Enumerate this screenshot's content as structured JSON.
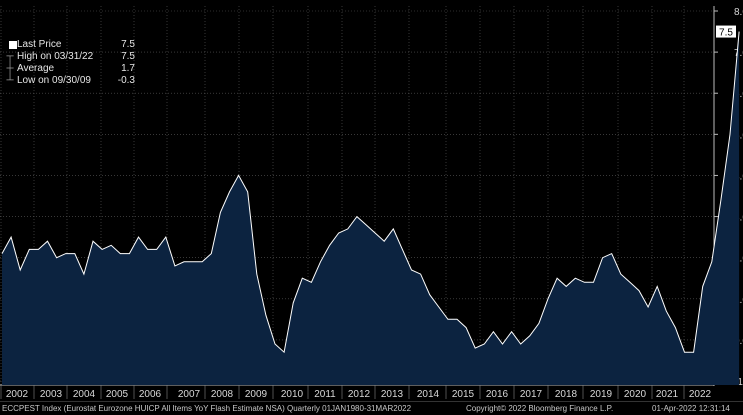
{
  "legend": {
    "last": {
      "label": "Last Price",
      "value": "7.5"
    },
    "high": {
      "label": "High on 03/31/22",
      "value": "7.5"
    },
    "average": {
      "label": "Average",
      "value": "1.7"
    },
    "low": {
      "label": "Low on 09/30/09",
      "value": "-0.3"
    }
  },
  "last_value_label": "7.5",
  "footer": {
    "index_desc": "ECCPEST Index (Eurostat Eurozone HUICP All Items YoY Flash Estimate NSA)  Quarterly 01JAN1980-31MAR2022",
    "copyright": "Copyright© 2022 Bloomberg Finance L.P.",
    "timestamp": "01-Apr-2022 12:31:14"
  },
  "colors": {
    "background": "#000000",
    "area_fill": "#0c2340",
    "line": "#ffffff",
    "grid": "#5a5a5a",
    "axis_text": "#d8d8d8"
  },
  "chart_data": {
    "type": "area",
    "ylim": [
      -1.0,
      8.0
    ],
    "y_ticks": [
      "8.0",
      "7.0",
      "6.0",
      "5.0",
      "4.0",
      "3.0",
      "2.0",
      "1.0",
      "0.0",
      "-1.0"
    ],
    "x_tick_labels": [
      "2002",
      "2003",
      "2004",
      "2005",
      "2006",
      "2007",
      "2008",
      "2009",
      "2010",
      "2011",
      "2012",
      "2013",
      "2014",
      "2015",
      "2016",
      "2017",
      "2018",
      "2019",
      "2020",
      "2021",
      "2022"
    ],
    "grid": true,
    "series": [
      {
        "start": "2001Q4",
        "frequency": "quarterly",
        "values": [
          2.1,
          2.5,
          1.7,
          2.2,
          2.2,
          2.4,
          2.0,
          2.1,
          2.1,
          1.6,
          2.4,
          2.2,
          2.3,
          2.1,
          2.1,
          2.5,
          2.2,
          2.2,
          2.5,
          1.8,
          1.9,
          1.9,
          1.9,
          2.1,
          3.1,
          3.6,
          4.0,
          3.6,
          1.6,
          0.6,
          -0.1,
          -0.3,
          0.9,
          1.5,
          1.4,
          1.9,
          2.3,
          2.6,
          2.7,
          3.0,
          2.8,
          2.6,
          2.4,
          2.7,
          2.2,
          1.7,
          1.6,
          1.1,
          0.8,
          0.5,
          0.5,
          0.3,
          -0.2,
          -0.1,
          0.2,
          -0.1,
          0.2,
          -0.1,
          0.1,
          0.4,
          1.0,
          1.5,
          1.3,
          1.5,
          1.4,
          1.4,
          2.0,
          2.1,
          1.6,
          1.4,
          1.2,
          0.8,
          1.3,
          0.7,
          0.3,
          -0.3,
          -0.3,
          1.3,
          1.9,
          3.4,
          5.0,
          7.5
        ]
      }
    ]
  }
}
